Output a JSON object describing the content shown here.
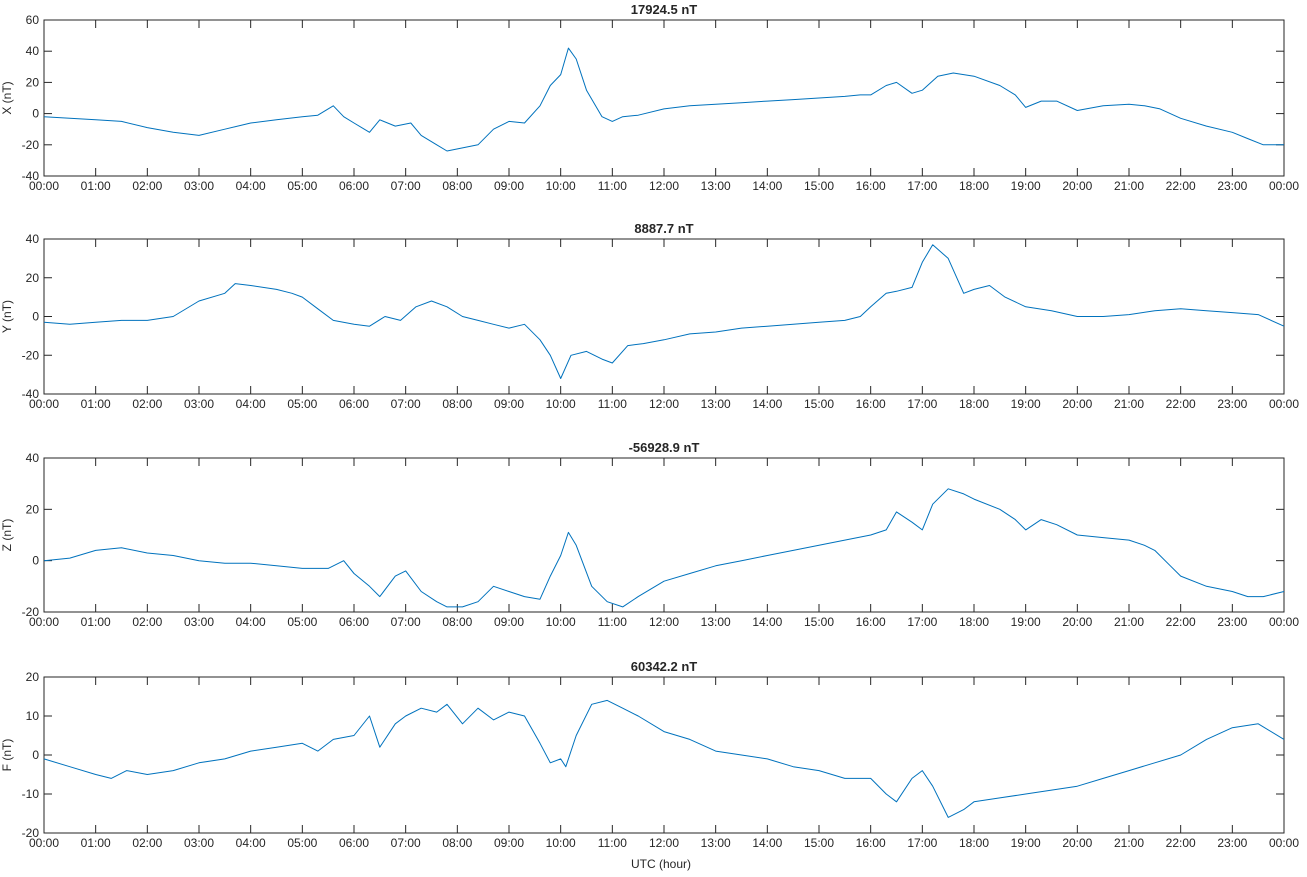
{
  "figure": {
    "xlabel": "UTC (hour)",
    "line_color": "#0072BD"
  },
  "chart_data": [
    {
      "type": "line",
      "title": "17924.5 nT",
      "ylabel": "X (nT)",
      "xlim": [
        0,
        24
      ],
      "ylim": [
        -40,
        60
      ],
      "yticks": [
        -40,
        -20,
        0,
        20,
        40,
        60
      ],
      "xtick_labels": [
        "00:00",
        "01:00",
        "02:00",
        "03:00",
        "04:00",
        "05:00",
        "06:00",
        "07:00",
        "08:00",
        "09:00",
        "10:00",
        "11:00",
        "12:00",
        "13:00",
        "14:00",
        "15:00",
        "16:00",
        "17:00",
        "18:00",
        "19:00",
        "20:00",
        "21:00",
        "22:00",
        "23:00",
        "00:00"
      ],
      "series": [
        {
          "color": "#0072BD",
          "x": [
            0,
            0.5,
            1,
            1.5,
            2,
            2.5,
            3,
            3.5,
            4,
            4.5,
            5,
            5.3,
            5.6,
            5.8,
            6,
            6.3,
            6.5,
            6.8,
            7.1,
            7.3,
            7.6,
            7.8,
            8.1,
            8.4,
            8.7,
            9,
            9.3,
            9.6,
            9.8,
            10,
            10.15,
            10.3,
            10.5,
            10.8,
            11,
            11.2,
            11.5,
            12,
            12.5,
            13,
            13.5,
            14,
            14.5,
            15,
            15.5,
            15.8,
            16,
            16.3,
            16.5,
            16.8,
            17,
            17.3,
            17.6,
            18,
            18.5,
            18.8,
            19,
            19.3,
            19.6,
            20,
            20.5,
            21,
            21.3,
            21.6,
            22,
            22.5,
            23,
            23.3,
            23.6,
            24
          ],
          "y": [
            -2,
            -3,
            -4,
            -5,
            -9,
            -12,
            -14,
            -10,
            -6,
            -4,
            -2,
            -1,
            5,
            -2,
            -6,
            -12,
            -4,
            -8,
            -6,
            -14,
            -20,
            -24,
            -22,
            -20,
            -10,
            -5,
            -6,
            5,
            18,
            25,
            42,
            35,
            15,
            -2,
            -5,
            -2,
            -1,
            3,
            5,
            6,
            7,
            8,
            9,
            10,
            11,
            12,
            12,
            18,
            20,
            13,
            15,
            24,
            26,
            24,
            18,
            12,
            4,
            8,
            8,
            2,
            5,
            6,
            5,
            3,
            -3,
            -8,
            -12,
            -16,
            -20,
            -20
          ]
        }
      ]
    },
    {
      "type": "line",
      "title": "8887.7 nT",
      "ylabel": "Y (nT)",
      "xlim": [
        0,
        24
      ],
      "ylim": [
        -40,
        40
      ],
      "yticks": [
        -40,
        -20,
        0,
        20,
        40
      ],
      "xtick_labels": [
        "00:00",
        "01:00",
        "02:00",
        "03:00",
        "04:00",
        "05:00",
        "06:00",
        "07:00",
        "08:00",
        "09:00",
        "10:00",
        "11:00",
        "12:00",
        "13:00",
        "14:00",
        "15:00",
        "16:00",
        "17:00",
        "18:00",
        "19:00",
        "20:00",
        "21:00",
        "22:00",
        "23:00",
        "00:00"
      ],
      "series": [
        {
          "color": "#0072BD",
          "x": [
            0,
            0.5,
            1,
            1.5,
            2,
            2.5,
            3,
            3.5,
            3.7,
            4,
            4.5,
            4.8,
            5,
            5.3,
            5.6,
            6,
            6.3,
            6.6,
            6.9,
            7.2,
            7.5,
            7.8,
            8.1,
            8.4,
            8.7,
            9,
            9.3,
            9.6,
            9.8,
            10,
            10.2,
            10.5,
            10.8,
            11,
            11.3,
            11.6,
            12,
            12.5,
            13,
            13.5,
            14,
            14.5,
            15,
            15.5,
            15.8,
            16,
            16.3,
            16.5,
            16.8,
            17,
            17.2,
            17.5,
            17.8,
            18,
            18.3,
            18.6,
            19,
            19.5,
            20,
            20.5,
            21,
            21.5,
            22,
            22.5,
            23,
            23.5,
            24
          ],
          "y": [
            -3,
            -4,
            -3,
            -2,
            -2,
            0,
            8,
            12,
            17,
            16,
            14,
            12,
            10,
            4,
            -2,
            -4,
            -5,
            0,
            -2,
            5,
            8,
            5,
            0,
            -2,
            -4,
            -6,
            -4,
            -12,
            -20,
            -32,
            -20,
            -18,
            -22,
            -24,
            -15,
            -14,
            -12,
            -9,
            -8,
            -6,
            -5,
            -4,
            -3,
            -2,
            0,
            5,
            12,
            13,
            15,
            28,
            37,
            30,
            12,
            14,
            16,
            10,
            5,
            3,
            0,
            0,
            1,
            3,
            4,
            3,
            2,
            1,
            -5
          ]
        }
      ]
    },
    {
      "type": "line",
      "title": "-56928.9 nT",
      "ylabel": "Z (nT)",
      "xlim": [
        0,
        24
      ],
      "ylim": [
        -20,
        40
      ],
      "yticks": [
        -20,
        0,
        20,
        40
      ],
      "xtick_labels": [
        "00:00",
        "01:00",
        "02:00",
        "03:00",
        "04:00",
        "05:00",
        "06:00",
        "07:00",
        "08:00",
        "09:00",
        "10:00",
        "11:00",
        "12:00",
        "13:00",
        "14:00",
        "15:00",
        "16:00",
        "17:00",
        "18:00",
        "19:00",
        "20:00",
        "21:00",
        "22:00",
        "23:00",
        "00:00"
      ],
      "series": [
        {
          "color": "#0072BD",
          "x": [
            0,
            0.5,
            1,
            1.5,
            2,
            2.5,
            3,
            3.5,
            4,
            4.5,
            5,
            5.5,
            5.8,
            6,
            6.3,
            6.5,
            6.8,
            7,
            7.3,
            7.6,
            7.8,
            8.1,
            8.4,
            8.7,
            9,
            9.3,
            9.6,
            9.8,
            10,
            10.15,
            10.3,
            10.6,
            10.9,
            11.2,
            11.5,
            12,
            12.5,
            13,
            13.5,
            14,
            14.5,
            15,
            15.5,
            16,
            16.3,
            16.5,
            16.8,
            17,
            17.2,
            17.5,
            17.8,
            18,
            18.5,
            18.8,
            19,
            19.3,
            19.6,
            20,
            20.5,
            21,
            21.3,
            21.5,
            21.8,
            22,
            22.5,
            23,
            23.3,
            23.6,
            24
          ],
          "y": [
            0,
            1,
            4,
            5,
            3,
            2,
            0,
            -1,
            -1,
            -2,
            -3,
            -3,
            0,
            -5,
            -10,
            -14,
            -6,
            -4,
            -12,
            -16,
            -18,
            -18,
            -16,
            -10,
            -12,
            -14,
            -15,
            -6,
            2,
            11,
            6,
            -10,
            -16,
            -18,
            -14,
            -8,
            -5,
            -2,
            0,
            2,
            4,
            6,
            8,
            10,
            12,
            19,
            15,
            12,
            22,
            28,
            26,
            24,
            20,
            16,
            12,
            16,
            14,
            10,
            9,
            8,
            6,
            4,
            -2,
            -6,
            -10,
            -12,
            -14,
            -14,
            -12
          ]
        }
      ]
    },
    {
      "type": "line",
      "title": "60342.2 nT",
      "ylabel": "F (nT)",
      "xlim": [
        0,
        24
      ],
      "ylim": [
        -20,
        20
      ],
      "yticks": [
        -20,
        -10,
        0,
        10,
        20
      ],
      "xlabel": "UTC (hour)",
      "xtick_labels": [
        "00:00",
        "01:00",
        "02:00",
        "03:00",
        "04:00",
        "05:00",
        "06:00",
        "07:00",
        "08:00",
        "09:00",
        "10:00",
        "11:00",
        "12:00",
        "13:00",
        "14:00",
        "15:00",
        "16:00",
        "17:00",
        "18:00",
        "19:00",
        "20:00",
        "21:00",
        "22:00",
        "23:00",
        "00:00"
      ],
      "series": [
        {
          "color": "#0072BD",
          "x": [
            0,
            0.5,
            1,
            1.3,
            1.6,
            2,
            2.5,
            3,
            3.5,
            4,
            4.5,
            5,
            5.3,
            5.6,
            6,
            6.3,
            6.5,
            6.8,
            7,
            7.3,
            7.6,
            7.8,
            8.1,
            8.4,
            8.7,
            9,
            9.3,
            9.6,
            9.8,
            10,
            10.1,
            10.3,
            10.6,
            10.9,
            11.2,
            11.5,
            12,
            12.5,
            13,
            13.5,
            14,
            14.5,
            15,
            15.5,
            16,
            16.3,
            16.5,
            16.8,
            17,
            17.2,
            17.5,
            17.8,
            18,
            18.5,
            19,
            19.5,
            20,
            20.5,
            21,
            21.5,
            22,
            22.5,
            23,
            23.5,
            24
          ],
          "y": [
            -1,
            -3,
            -5,
            -6,
            -4,
            -5,
            -4,
            -2,
            -1,
            1,
            2,
            3,
            1,
            4,
            5,
            10,
            2,
            8,
            10,
            12,
            11,
            13,
            8,
            12,
            9,
            11,
            10,
            3,
            -2,
            -1,
            -3,
            5,
            13,
            14,
            12,
            10,
            6,
            4,
            1,
            0,
            -1,
            -3,
            -4,
            -6,
            -6,
            -10,
            -12,
            -6,
            -4,
            -8,
            -16,
            -14,
            -12,
            -11,
            -10,
            -9,
            -8,
            -6,
            -4,
            -2,
            0,
            4,
            7,
            8,
            4
          ]
        }
      ]
    }
  ]
}
